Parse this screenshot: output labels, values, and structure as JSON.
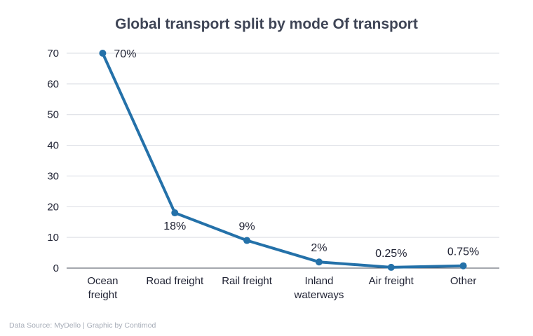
{
  "chart_data": {
    "type": "line",
    "title": "Global transport split by mode Of transport",
    "categories": [
      [
        "Ocean",
        "freight"
      ],
      [
        "Road freight"
      ],
      [
        "Rail freight"
      ],
      [
        "Inland",
        "waterways"
      ],
      [
        "Air freight"
      ],
      [
        "Other"
      ]
    ],
    "values": [
      70,
      18,
      9,
      2,
      0.25,
      0.75
    ],
    "data_labels": [
      "70%",
      "18%",
      "9%",
      "2%",
      "0.25%",
      "0.75%"
    ],
    "ylim": [
      0,
      70
    ],
    "yticks": [
      0,
      10,
      20,
      30,
      40,
      50,
      60,
      70
    ],
    "xlabel": "",
    "ylabel": "",
    "grid": true,
    "color": "#2471a9"
  },
  "footer": {
    "source": "Data Source: MyDello | Graphic by Contimod"
  }
}
